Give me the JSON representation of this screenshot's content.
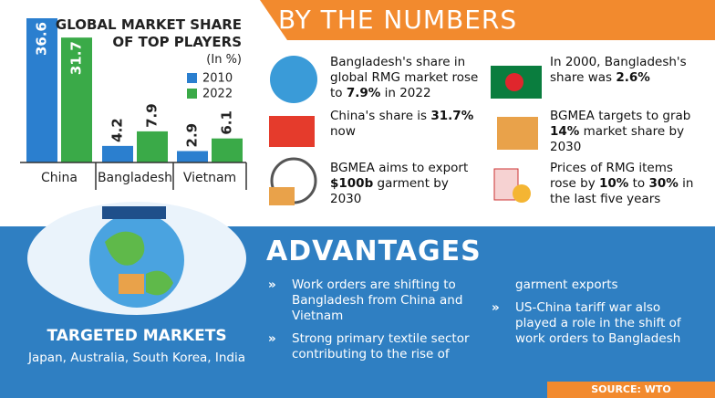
{
  "chart_data": {
    "type": "bar",
    "title": "GLOBAL MARKET SHARE OF TOP PLAYERS",
    "subtitle": "(In %)",
    "categories": [
      "China",
      "Bangladesh",
      "Vietnam"
    ],
    "series": [
      {
        "name": "2010",
        "color": "#2b7fcf",
        "values": [
          36.6,
          4.2,
          2.9
        ]
      },
      {
        "name": "2022",
        "color": "#3aaa48",
        "values": [
          31.7,
          7.9,
          6.1
        ]
      }
    ]
  },
  "header": {
    "title": "BY THE NUMBERS"
  },
  "facts": [
    {
      "parts": [
        "Bangladesh's share in global RMG market rose to ",
        "7.9%",
        " in 2022"
      ]
    },
    {
      "parts": [
        "China's share is ",
        "31.7%",
        " now"
      ]
    },
    {
      "parts": [
        "BGMEA aims to export ",
        "$100b",
        " garment by 2030"
      ]
    },
    {
      "parts": [
        "In 2000, Bangladesh's share was ",
        "2.6%"
      ]
    },
    {
      "parts": [
        "BGMEA targets to grab ",
        "14%",
        " market share by 2030"
      ]
    },
    {
      "parts": [
        "Prices of RMG items rose by ",
        "10%",
        " to ",
        "30%",
        " in the last five years"
      ]
    }
  ],
  "advantages": {
    "title": "ADVANTAGES",
    "items": [
      "Work orders are shifting to Bangladesh from China and Vietnam",
      "Strong primary textile sector contributing to the rise of garment exports",
      "US-China tariff war also played a role in the shift of work orders to Bangladesh"
    ]
  },
  "markets": {
    "title": "TARGETED MARKETS",
    "text": "Japan, Australia, South Korea, India"
  },
  "source": "SOURCE: WTO"
}
